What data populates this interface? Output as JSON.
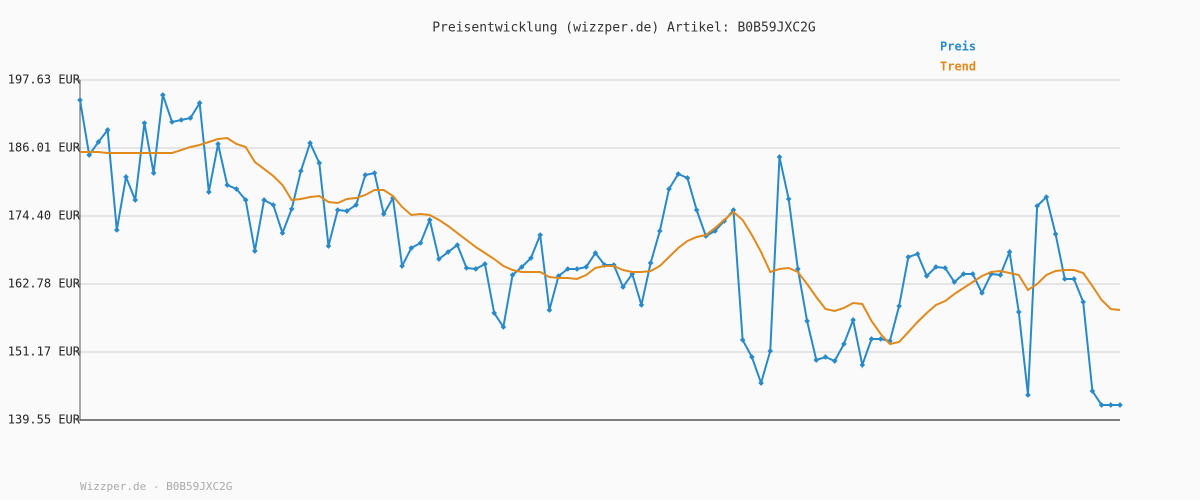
{
  "chart_data": {
    "type": "line",
    "title": "Preisentwicklung (wizzper.de) Artikel: B0B59JXC2G",
    "footer": "Wizzper.de - B0B59JXC2G",
    "ylim": [
      139.55,
      197.63
    ],
    "yticks": [
      {
        "value": 139.55,
        "label": "139.55 EUR"
      },
      {
        "value": 151.17,
        "label": "151.17 EUR"
      },
      {
        "value": 162.78,
        "label": "162.78 EUR"
      },
      {
        "value": 174.4,
        "label": "174.40 EUR"
      },
      {
        "value": 186.01,
        "label": "186.01 EUR"
      },
      {
        "value": 197.63,
        "label": "197.63 EUR"
      }
    ],
    "grid": true,
    "legend": "top-right",
    "series": [
      {
        "name": "Preis",
        "color": "#2a8ac8",
        "markers": true,
        "values": [
          194.21,
          184.82,
          187.04,
          189.09,
          172.01,
          181.06,
          177.13,
          190.28,
          181.74,
          195.07,
          190.46,
          190.8,
          191.14,
          193.7,
          178.5,
          186.7,
          179.69,
          179.01,
          177.13,
          168.42,
          177.13,
          176.28,
          171.49,
          175.59,
          182.09,
          186.87,
          183.45,
          169.27,
          175.42,
          175.25,
          176.28,
          181.4,
          181.74,
          174.74,
          177.47,
          165.86,
          168.93,
          169.79,
          173.72,
          167.05,
          168.25,
          169.44,
          165.52,
          165.35,
          166.2,
          157.83,
          155.44,
          164.32,
          165.69,
          167.22,
          171.15,
          158.34,
          164.15,
          165.35,
          165.35,
          165.69,
          168.08,
          166.03,
          166.03,
          162.27,
          164.49,
          159.2,
          166.37,
          171.84,
          179.01,
          181.57,
          180.89,
          175.42,
          170.98,
          171.84,
          173.54,
          175.42,
          153.22,
          150.31,
          145.87,
          151.34,
          184.48,
          177.3,
          165.35,
          156.46,
          149.8,
          150.31,
          149.63,
          152.53,
          156.63,
          148.95,
          153.39,
          153.39,
          153.05,
          159.02,
          167.39,
          167.91,
          164.15,
          165.69,
          165.52,
          163.12,
          164.49,
          164.49,
          161.25,
          164.49,
          164.32,
          168.25,
          158.0,
          143.82,
          176.11,
          177.64,
          171.32,
          163.64,
          163.64,
          159.71,
          144.5,
          142.11,
          142.11,
          142.11
        ]
      },
      {
        "name": "Trend",
        "color": "#e08a1e",
        "markers": false,
        "values": [
          185.33,
          185.33,
          185.33,
          185.16,
          185.16,
          185.16,
          185.16,
          185.16,
          185.16,
          185.16,
          185.16,
          185.67,
          186.19,
          186.53,
          187.04,
          187.55,
          187.72,
          186.7,
          186.19,
          183.62,
          182.43,
          181.23,
          179.69,
          177.13,
          177.3,
          177.64,
          177.81,
          176.79,
          176.62,
          177.3,
          177.47,
          177.99,
          178.84,
          178.84,
          177.81,
          175.94,
          174.57,
          174.74,
          174.57,
          173.72,
          172.69,
          171.49,
          170.3,
          169.1,
          168.08,
          167.05,
          165.86,
          165.17,
          164.83,
          164.83,
          164.83,
          163.98,
          163.81,
          163.81,
          163.64,
          164.32,
          165.52,
          165.86,
          165.86,
          165.17,
          164.83,
          164.83,
          165.0,
          165.86,
          167.39,
          168.93,
          170.13,
          170.81,
          171.15,
          172.35,
          173.72,
          175.08,
          173.72,
          171.15,
          168.25,
          164.83,
          165.35,
          165.52,
          164.83,
          162.78,
          160.56,
          158.51,
          158.17,
          158.68,
          159.54,
          159.37,
          156.46,
          154.24,
          152.53,
          152.88,
          154.58,
          156.29,
          157.83,
          159.2,
          159.88,
          161.07,
          162.1,
          163.12,
          164.15,
          164.83,
          165.0,
          164.66,
          164.32,
          161.76,
          162.78,
          164.32,
          165.0,
          165.17,
          165.17,
          164.66,
          162.44,
          160.05,
          158.51,
          158.34
        ]
      }
    ]
  }
}
